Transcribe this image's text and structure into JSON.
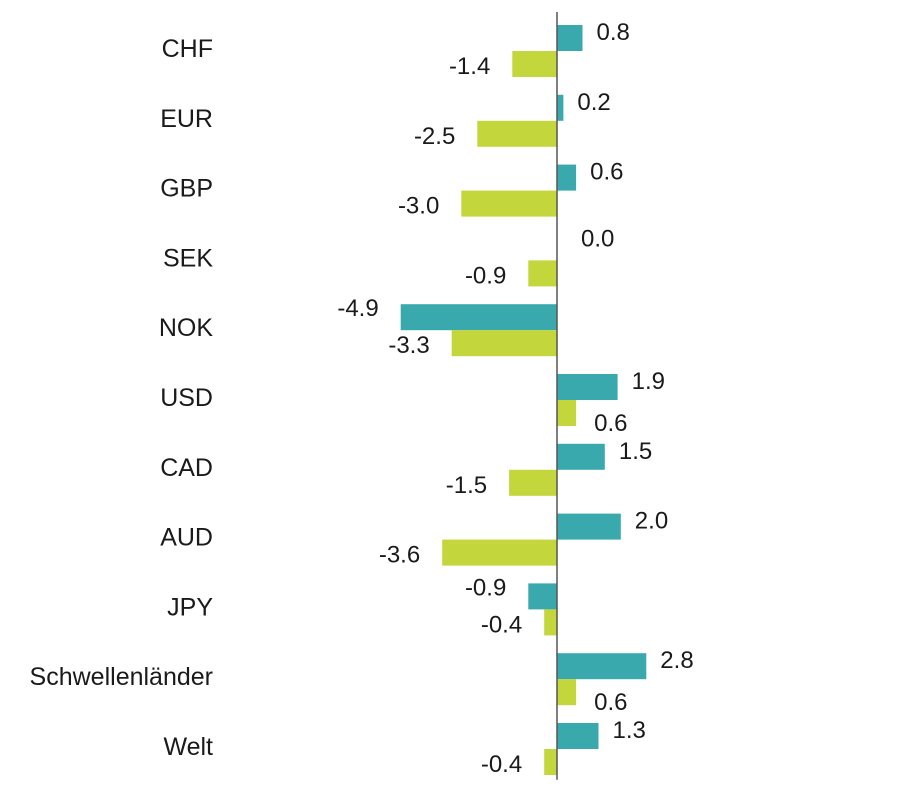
{
  "chart_data": {
    "type": "bar",
    "orientation": "horizontal",
    "categories": [
      "CHF",
      "EUR",
      "GBP",
      "SEK",
      "NOK",
      "USD",
      "CAD",
      "AUD",
      "JPY",
      "Schwellenländer",
      "Welt"
    ],
    "series": [
      {
        "color": "#3aa9ae",
        "values": [
          0.8,
          0.2,
          0.6,
          0.0,
          -4.9,
          1.9,
          1.5,
          2.0,
          -0.9,
          2.8,
          1.3
        ],
        "value_labels": [
          "0.8",
          "0.2",
          "0.6",
          "0.0",
          "-4.9",
          "1.9",
          "1.5",
          "2.0",
          "-0.9",
          "2.8",
          "1.3"
        ]
      },
      {
        "color": "#c3d63c",
        "values": [
          -1.4,
          -2.5,
          -3.0,
          -0.9,
          -3.3,
          0.6,
          -1.5,
          -3.6,
          -0.4,
          0.6,
          -0.4
        ],
        "value_labels": [
          "-1.4",
          "-2.5",
          "-3.0",
          "-0.9",
          "-3.3",
          "0.6",
          "-1.5",
          "-3.6",
          "-0.4",
          "0.6",
          "-0.4"
        ]
      }
    ],
    "xlim": [
      -4.9,
      3.0
    ],
    "grid": false,
    "legend": "none",
    "title": "",
    "xlabel": "",
    "ylabel": ""
  }
}
